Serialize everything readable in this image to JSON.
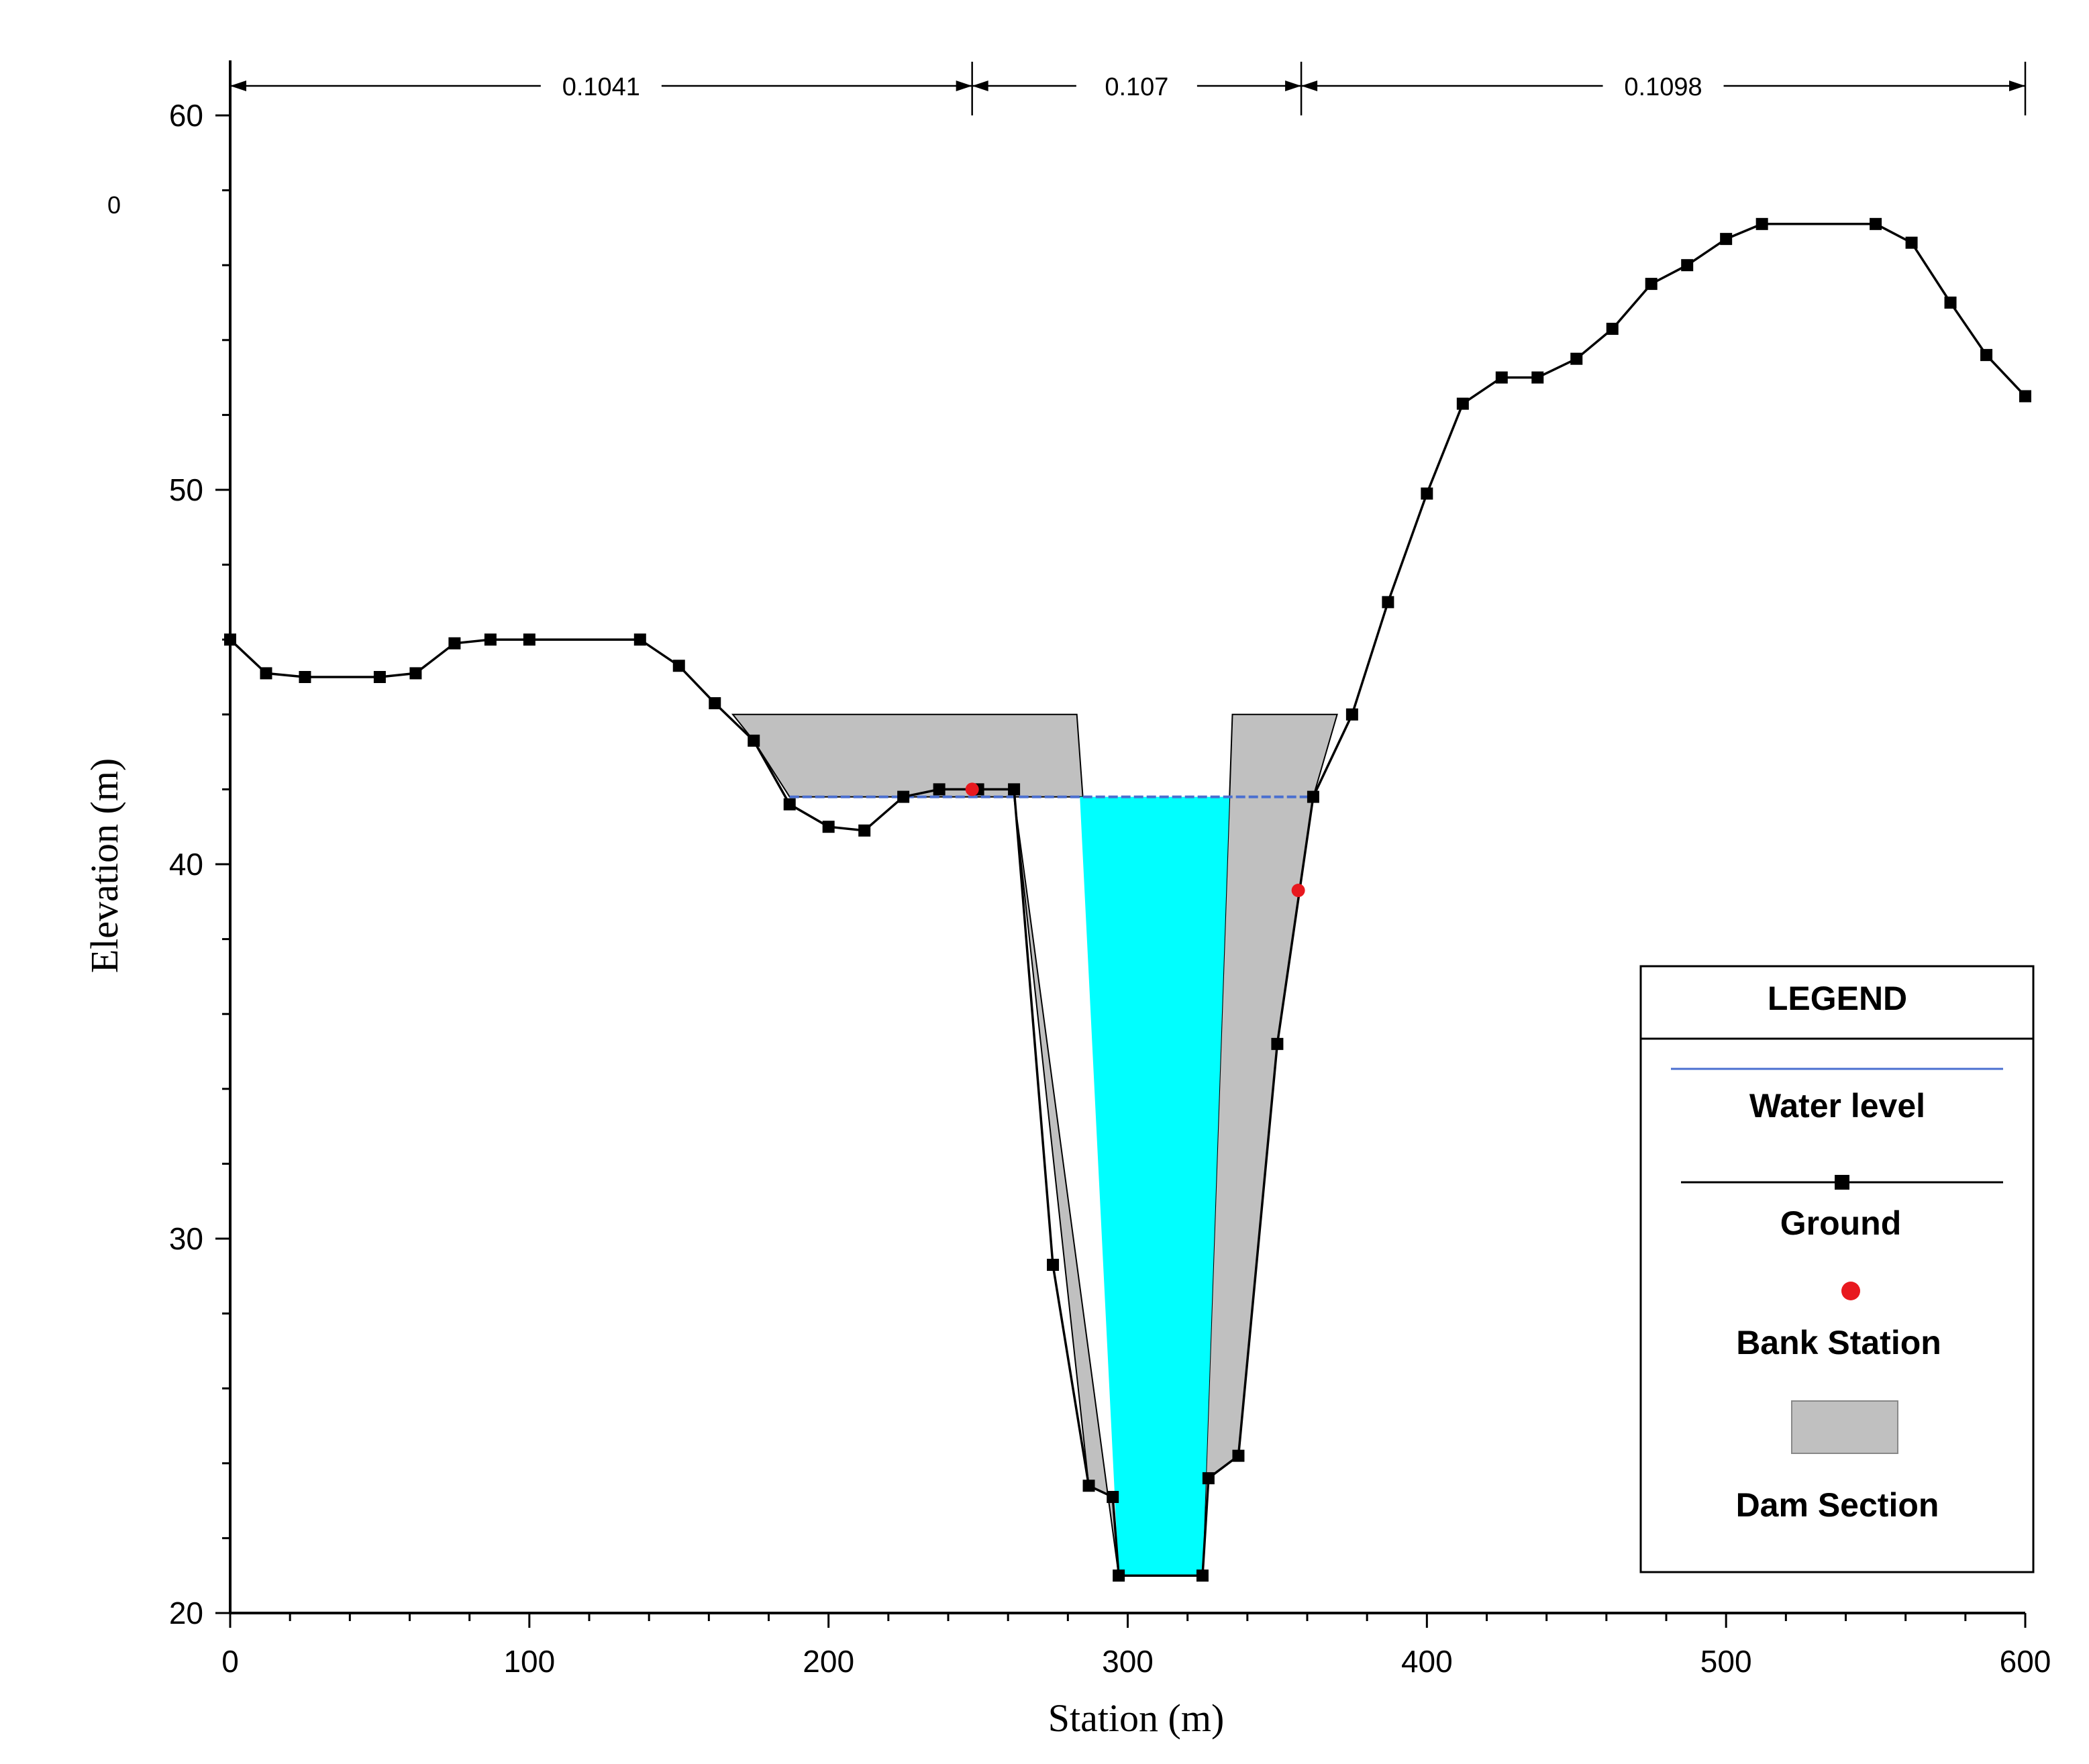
{
  "chart_data": {
    "type": "line",
    "title": "",
    "xlabel": "Station (m)",
    "ylabel": "Elevation (m)",
    "xlim": [
      0,
      600
    ],
    "ylim": [
      20,
      60
    ],
    "x_ticks": [
      0,
      100,
      200,
      300,
      400,
      500,
      600
    ],
    "y_ticks": [
      20,
      30,
      40,
      50,
      60
    ],
    "corner_label": "0",
    "mannings_n": [
      {
        "value": "0.1041",
        "from": 0,
        "to": 248
      },
      {
        "value": "0.107",
        "from": 248,
        "to": 358
      },
      {
        "value": "0.1098",
        "from": 358,
        "to": 600
      }
    ],
    "series": [
      {
        "name": "Ground",
        "color": "#000000",
        "x": [
          0,
          12,
          25,
          50,
          62,
          75,
          87,
          100,
          137,
          150,
          162,
          175,
          187,
          200,
          212,
          225,
          237,
          250,
          262,
          275,
          287,
          295,
          297,
          325,
          327,
          337,
          350,
          362,
          375,
          387,
          400,
          412,
          425,
          437,
          450,
          462,
          475,
          487,
          500,
          512,
          550,
          562,
          575,
          587,
          600
        ],
        "y": [
          46,
          45.1,
          45,
          45,
          45.1,
          45.9,
          46,
          46,
          46,
          45.3,
          44.3,
          43.3,
          41.6,
          41,
          40.9,
          41.8,
          42,
          42,
          42,
          29.3,
          23.4,
          23.1,
          21,
          21,
          23.6,
          24.2,
          35.2,
          41.8,
          44,
          47,
          49.9,
          52.3,
          53,
          53,
          53.5,
          54.3,
          55.5,
          56,
          56.7,
          57.1,
          57.1,
          56.6,
          55,
          53.6,
          52.5
        ]
      },
      {
        "name": "Water level",
        "color": "#4a6fd0",
        "x": [
          187,
          362
        ],
        "y": [
          41.8,
          41.8
        ]
      }
    ],
    "bank_stations": [
      {
        "x": 248,
        "y": 42
      },
      {
        "x": 357,
        "y": 39.3
      }
    ],
    "dam_section": [
      {
        "x": [
          168,
          283,
          285,
          262,
          287,
          295,
          297,
          262,
          187,
          175,
          168
        ],
        "y": [
          44,
          44,
          41.8,
          41.8,
          23.4,
          23.1,
          21,
          41.8,
          41.8,
          43.3,
          44
        ]
      },
      {
        "x": [
          335,
          370,
          362,
          350,
          337,
          327,
          325,
          335
        ],
        "y": [
          44,
          44,
          41.8,
          35.2,
          24.2,
          23.6,
          21,
          44
        ]
      }
    ],
    "water_section": {
      "x": [
        284,
        334,
        325,
        297,
        284
      ],
      "y": [
        41.8,
        41.8,
        21,
        21,
        41.8
      ]
    },
    "colors": {
      "dam": "#c0c0c0",
      "water": "#00ffff",
      "bank": "#e8191f",
      "water_line": "#4a6fd0"
    }
  },
  "legend": {
    "title": "LEGEND",
    "items": [
      {
        "label": "Water level"
      },
      {
        "label": "Ground"
      },
      {
        "label": "Bank Station"
      },
      {
        "label": "Dam Section"
      }
    ]
  }
}
